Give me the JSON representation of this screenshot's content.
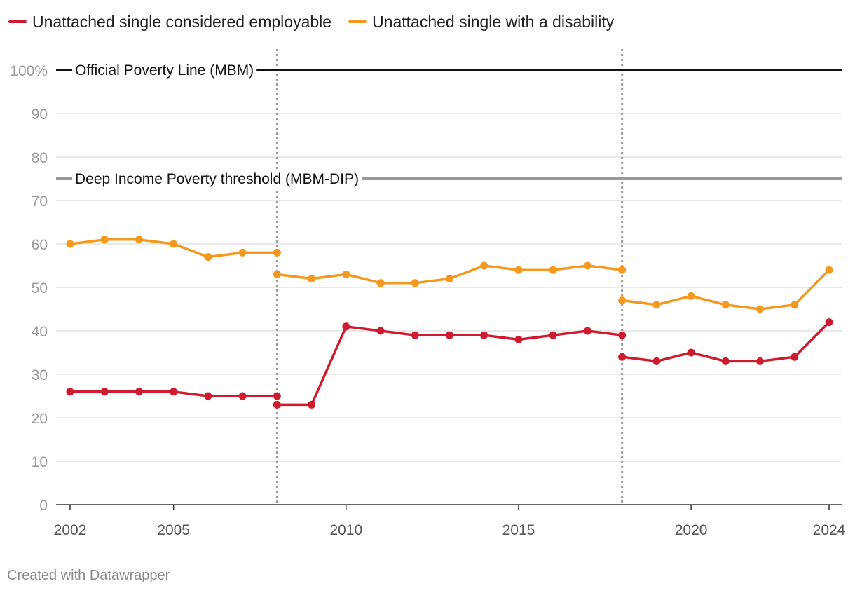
{
  "legend": [
    {
      "label": "Unattached single considered employable",
      "color": "#cf1b2f"
    },
    {
      "label": "Unattached single with a disability",
      "color": "#f4981e"
    }
  ],
  "footer": {
    "credit": "Created with Datawrapper"
  },
  "chart_data": {
    "type": "line",
    "title": "",
    "xlabel": "",
    "ylabel": "",
    "xlim": [
      2002,
      2024
    ],
    "ylim": [
      0,
      100
    ],
    "y_ticks": [
      0,
      10,
      20,
      30,
      40,
      50,
      60,
      70,
      80,
      90,
      100
    ],
    "y_tick_labels": [
      "0",
      "10",
      "20",
      "30",
      "40",
      "50",
      "60",
      "70",
      "80",
      "90",
      "100%"
    ],
    "x_ticks": [
      2002,
      2005,
      2010,
      2015,
      2020,
      2024
    ],
    "x_tick_labels": [
      "2002",
      "2005",
      "2010",
      "2015",
      "2020",
      "2024"
    ],
    "grid": true,
    "legend_position": "top-left",
    "reference_lines": [
      {
        "label": "Official Poverty Line (MBM)",
        "value": 100,
        "color": "#111111"
      },
      {
        "label": "Deep Income Poverty threshold (MBM-DIP)",
        "value": 75,
        "color": "#999999"
      }
    ],
    "vertical_markers": [
      2008,
      2018
    ],
    "series": [
      {
        "name": "Unattached single considered employable",
        "color": "#cf1b2f",
        "segments": [
          {
            "x": [
              2002,
              2003,
              2004,
              2005,
              2006,
              2007,
              2008
            ],
            "y": [
              26,
              26,
              26,
              26,
              25,
              25,
              25
            ]
          },
          {
            "x": [
              2008,
              2009,
              2010,
              2011,
              2012,
              2013,
              2014,
              2015,
              2016,
              2017,
              2018
            ],
            "y": [
              23,
              23,
              41,
              40,
              39,
              39,
              39,
              38,
              39,
              40,
              39
            ]
          },
          {
            "x": [
              2018,
              2019,
              2020,
              2021,
              2022,
              2023,
              2024
            ],
            "y": [
              34,
              33,
              35,
              33,
              33,
              34,
              42
            ]
          }
        ]
      },
      {
        "name": "Unattached single with a disability",
        "color": "#f4981e",
        "segments": [
          {
            "x": [
              2002,
              2003,
              2004,
              2005,
              2006,
              2007,
              2008
            ],
            "y": [
              60,
              61,
              61,
              60,
              57,
              58,
              58
            ]
          },
          {
            "x": [
              2008,
              2009,
              2010,
              2011,
              2012,
              2013,
              2014,
              2015,
              2016,
              2017,
              2018
            ],
            "y": [
              53,
              52,
              53,
              51,
              51,
              52,
              55,
              54,
              54,
              55,
              54
            ]
          },
          {
            "x": [
              2018,
              2019,
              2020,
              2021,
              2022,
              2023,
              2024
            ],
            "y": [
              47,
              46,
              48,
              46,
              45,
              46,
              54
            ]
          }
        ]
      }
    ]
  }
}
